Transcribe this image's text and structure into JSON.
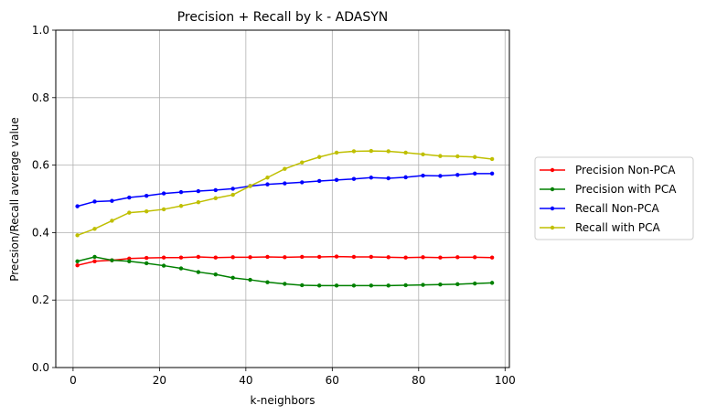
{
  "chart_data": {
    "type": "line",
    "title": "Precision + Recall by k - ADASYN",
    "xlabel": "k-neighbors",
    "ylabel": "Precsion/Recall average value",
    "xlim": [
      -4,
      101
    ],
    "ylim": [
      0.0,
      1.0
    ],
    "xticks": [
      0,
      20,
      40,
      60,
      80,
      100
    ],
    "yticks": [
      0.0,
      0.2,
      0.4,
      0.6,
      0.8,
      1.0
    ],
    "xtick_labels": [
      "0",
      "20",
      "40",
      "60",
      "80",
      "100"
    ],
    "ytick_labels": [
      "0.0",
      "0.2",
      "0.4",
      "0.6",
      "0.8",
      "1.0"
    ],
    "grid": true,
    "legend_position": "right-outside",
    "x": [
      1,
      5,
      9,
      13,
      17,
      21,
      25,
      29,
      33,
      37,
      41,
      45,
      49,
      53,
      57,
      61,
      65,
      69,
      73,
      77,
      81,
      85,
      89,
      93,
      97
    ],
    "series": [
      {
        "name": "Precision Non-PCA",
        "color": "#ff0000",
        "values": [
          0.303,
          0.315,
          0.318,
          0.323,
          0.325,
          0.326,
          0.326,
          0.328,
          0.326,
          0.327,
          0.327,
          0.328,
          0.327,
          0.328,
          0.328,
          0.329,
          0.328,
          0.328,
          0.327,
          0.326,
          0.327,
          0.326,
          0.327,
          0.327,
          0.326
        ]
      },
      {
        "name": "Precision with PCA",
        "color": "#008000",
        "values": [
          0.315,
          0.328,
          0.318,
          0.315,
          0.309,
          0.302,
          0.294,
          0.283,
          0.276,
          0.266,
          0.26,
          0.253,
          0.248,
          0.244,
          0.243,
          0.243,
          0.243,
          0.243,
          0.243,
          0.244,
          0.245,
          0.246,
          0.247,
          0.249,
          0.251
        ]
      },
      {
        "name": "Recall Non-PCA",
        "color": "#0000ff",
        "values": [
          0.478,
          0.492,
          0.494,
          0.504,
          0.509,
          0.516,
          0.52,
          0.523,
          0.526,
          0.53,
          0.538,
          0.543,
          0.546,
          0.549,
          0.553,
          0.556,
          0.559,
          0.563,
          0.561,
          0.564,
          0.569,
          0.568,
          0.571,
          0.575,
          0.575
        ]
      },
      {
        "name": "Recall with PCA",
        "color": "#bfbf00",
        "values": [
          0.392,
          0.411,
          0.435,
          0.459,
          0.463,
          0.469,
          0.479,
          0.49,
          0.502,
          0.512,
          0.538,
          0.563,
          0.589,
          0.608,
          0.624,
          0.637,
          0.641,
          0.642,
          0.641,
          0.637,
          0.632,
          0.627,
          0.626,
          0.624,
          0.618
        ]
      }
    ]
  }
}
